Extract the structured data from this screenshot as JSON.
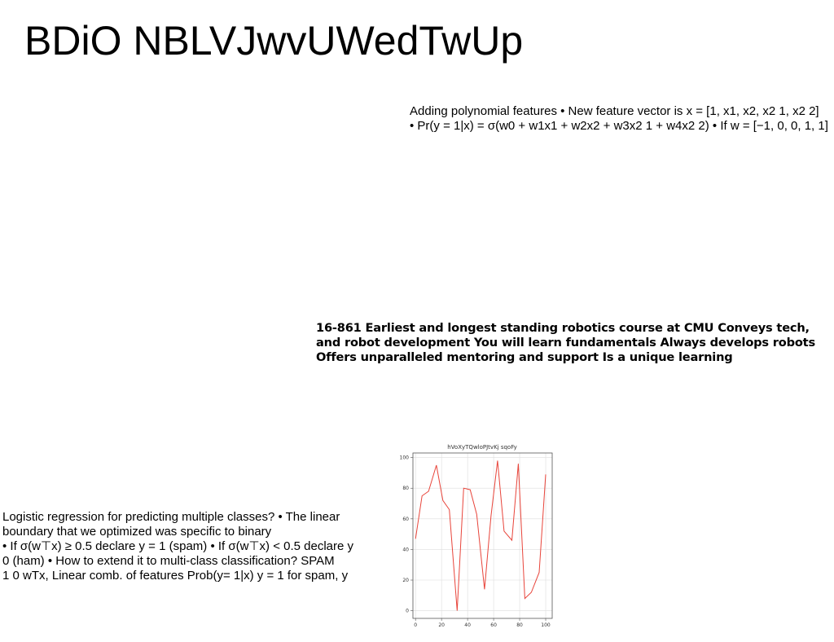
{
  "slide": {
    "title": "BDiO NBLVJwvUWedTwUp",
    "poly_line1": "Adding polynomial features • New feature vector is x = [1, x1, x2, x2 1, x2 2]",
    "poly_line2": "• Pr(y = 1|x) = σ(w0 + w1x1 + w2x2 + w3x2 1 + w4x2 2) • If w = [−1, 0, 0, 1, 1]",
    "course_text": "16-861 Earliest and longest standing robotics course at CMU Conveys tech, and robot development You will learn fundamentals Always develops robots Offers unparalleled mentoring and support Is a unique learning",
    "logistic_lines": [
      "Logistic regression for predicting multiple classes? • The linear",
      "boundary that we optimized was specific to binary",
      "• If σ(w⊤x) ≥ 0.5 declare y = 1 (spam) • If σ(w⊤x) < 0.5 declare y",
      "0 (ham) • How to extend it to multi-class classification? SPAM",
      "1 0 wTx, Linear comb. of features Prob(y= 1|x) y = 1 for spam, y"
    ]
  },
  "chart_data": {
    "type": "line",
    "title": "hVoXyTQwloPJtvKj sqoFy",
    "xlabel": "",
    "ylabel": "",
    "xlim": [
      -2,
      105
    ],
    "ylim": [
      -5,
      103
    ],
    "grid": true,
    "line_color": "#e8443a",
    "xticks": [
      0,
      20,
      40,
      60,
      80,
      100
    ],
    "yticks": [
      0,
      20,
      40,
      60,
      80,
      100
    ],
    "series": [
      {
        "x": [
          0,
          5,
          10,
          16,
          21,
          26,
          32,
          37,
          42,
          47,
          53,
          58,
          63,
          68,
          74,
          79,
          84,
          89,
          95,
          100
        ],
        "y": [
          47,
          75,
          78,
          95,
          72,
          66,
          0,
          80,
          79,
          63,
          14,
          62,
          98,
          52,
          46,
          96,
          8,
          12,
          25,
          89
        ]
      }
    ]
  }
}
